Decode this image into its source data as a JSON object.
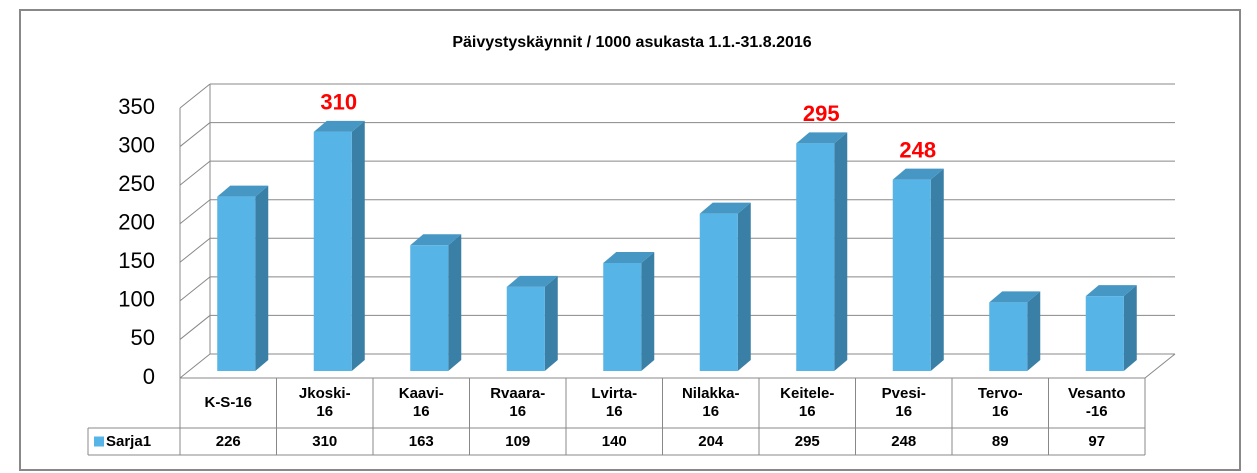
{
  "chart_data": {
    "type": "bar3d",
    "title": "Päivystyskäynnit / 1000 asukasta 1.1.-31.8.2016",
    "categories": [
      "K-S-16",
      "Jkoski-\n16",
      "Kaavi-\n16",
      "Rvaara-\n16",
      "Lvirta-\n16",
      "Nilakka-\n16",
      "Keitele-\n16",
      "Pvesi-\n16",
      "Tervo-\n16",
      "Vesanto\n-16"
    ],
    "series": [
      {
        "name": "Sarja1",
        "color": "#56b4e6",
        "values": [
          226,
          310,
          163,
          109,
          140,
          204,
          295,
          248,
          89,
          97
        ],
        "value_labels": [
          null,
          "310",
          null,
          null,
          null,
          null,
          "295",
          "248",
          null,
          null
        ]
      }
    ],
    "label_color": "#ff0000",
    "ylim": [
      0,
      350
    ],
    "yticks": [
      0,
      50,
      100,
      150,
      200,
      250,
      300,
      350
    ],
    "grid": true,
    "data_table": true
  }
}
